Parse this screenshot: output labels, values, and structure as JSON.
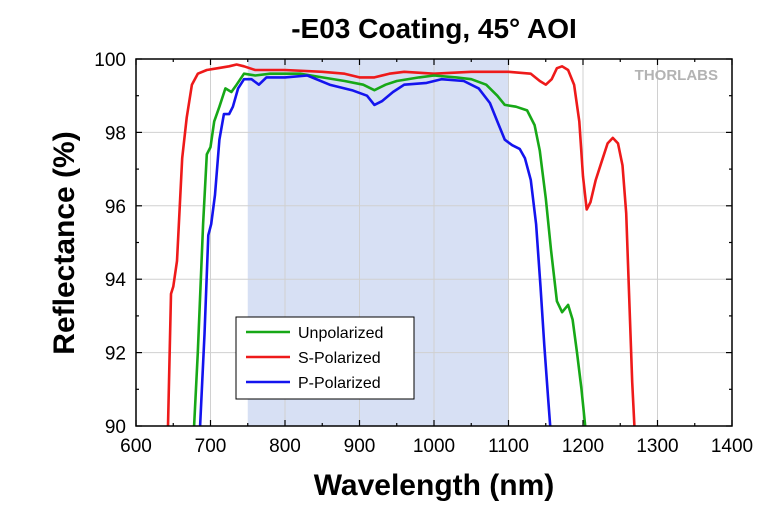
{
  "chart_data": {
    "type": "line",
    "title": "-E03 Coating, 45° AOI",
    "xlabel": "Wavelength (nm)",
    "ylabel": "Reflectance (%)",
    "xlim": [
      600,
      1400
    ],
    "ylim": [
      90,
      100
    ],
    "x_ticks": [
      600,
      700,
      800,
      900,
      1000,
      1100,
      1200,
      1300,
      1400
    ],
    "y_ticks": [
      90,
      92,
      94,
      96,
      98,
      100
    ],
    "grid": true,
    "legend_position": "bottom-left",
    "shaded_region": {
      "x": [
        750,
        1100
      ],
      "color": "#d7e0f4"
    },
    "watermark": "THORLABS",
    "series": [
      {
        "name": "Unpolarized",
        "color": "#17a817",
        "points": [
          [
            678,
            90
          ],
          [
            683,
            92
          ],
          [
            690,
            95.5
          ],
          [
            695,
            97.4
          ],
          [
            700,
            97.6
          ],
          [
            705,
            98.3
          ],
          [
            712,
            98.7
          ],
          [
            720,
            99.2
          ],
          [
            728,
            99.1
          ],
          [
            735,
            99.3
          ],
          [
            745,
            99.6
          ],
          [
            760,
            99.55
          ],
          [
            780,
            99.6
          ],
          [
            800,
            99.6
          ],
          [
            820,
            99.6
          ],
          [
            850,
            99.5
          ],
          [
            880,
            99.4
          ],
          [
            905,
            99.3
          ],
          [
            920,
            99.15
          ],
          [
            935,
            99.3
          ],
          [
            950,
            99.4
          ],
          [
            980,
            99.5
          ],
          [
            1000,
            99.55
          ],
          [
            1030,
            99.5
          ],
          [
            1050,
            99.45
          ],
          [
            1070,
            99.3
          ],
          [
            1085,
            99.0
          ],
          [
            1095,
            98.75
          ],
          [
            1110,
            98.7
          ],
          [
            1125,
            98.6
          ],
          [
            1135,
            98.2
          ],
          [
            1142,
            97.5
          ],
          [
            1150,
            96.2
          ],
          [
            1157,
            94.8
          ],
          [
            1165,
            93.4
          ],
          [
            1172,
            93.1
          ],
          [
            1180,
            93.3
          ],
          [
            1186,
            92.9
          ],
          [
            1192,
            92.0
          ],
          [
            1198,
            91.0
          ],
          [
            1203,
            90
          ]
        ]
      },
      {
        "name": "S-Polarized",
        "color": "#ee1a1a",
        "points": [
          [
            643,
            90
          ],
          [
            647,
            93.6
          ],
          [
            650,
            93.8
          ],
          [
            655,
            94.5
          ],
          [
            662,
            97.3
          ],
          [
            668,
            98.4
          ],
          [
            675,
            99.3
          ],
          [
            683,
            99.6
          ],
          [
            695,
            99.7
          ],
          [
            710,
            99.75
          ],
          [
            725,
            99.8
          ],
          [
            735,
            99.85
          ],
          [
            745,
            99.8
          ],
          [
            760,
            99.7
          ],
          [
            800,
            99.7
          ],
          [
            850,
            99.65
          ],
          [
            880,
            99.6
          ],
          [
            900,
            99.5
          ],
          [
            920,
            99.5
          ],
          [
            940,
            99.6
          ],
          [
            960,
            99.65
          ],
          [
            1000,
            99.6
          ],
          [
            1050,
            99.65
          ],
          [
            1100,
            99.65
          ],
          [
            1130,
            99.6
          ],
          [
            1142,
            99.4
          ],
          [
            1150,
            99.3
          ],
          [
            1158,
            99.45
          ],
          [
            1165,
            99.75
          ],
          [
            1172,
            99.8
          ],
          [
            1180,
            99.7
          ],
          [
            1188,
            99.3
          ],
          [
            1195,
            98.3
          ],
          [
            1200,
            96.8
          ],
          [
            1205,
            95.9
          ],
          [
            1210,
            96.1
          ],
          [
            1217,
            96.7
          ],
          [
            1225,
            97.2
          ],
          [
            1233,
            97.7
          ],
          [
            1240,
            97.85
          ],
          [
            1247,
            97.7
          ],
          [
            1253,
            97.1
          ],
          [
            1258,
            95.8
          ],
          [
            1262,
            93.5
          ],
          [
            1266,
            91.2
          ],
          [
            1269,
            90
          ]
        ]
      },
      {
        "name": "P-Polarized",
        "color": "#1414ee",
        "points": [
          [
            686,
            90
          ],
          [
            692,
            92.5
          ],
          [
            697,
            95.2
          ],
          [
            701,
            95.5
          ],
          [
            706,
            96.3
          ],
          [
            712,
            97.8
          ],
          [
            718,
            98.5
          ],
          [
            725,
            98.5
          ],
          [
            730,
            98.7
          ],
          [
            737,
            99.2
          ],
          [
            745,
            99.45
          ],
          [
            755,
            99.45
          ],
          [
            765,
            99.3
          ],
          [
            775,
            99.5
          ],
          [
            800,
            99.5
          ],
          [
            830,
            99.55
          ],
          [
            860,
            99.3
          ],
          [
            890,
            99.15
          ],
          [
            910,
            99.0
          ],
          [
            920,
            98.75
          ],
          [
            930,
            98.85
          ],
          [
            945,
            99.1
          ],
          [
            960,
            99.3
          ],
          [
            990,
            99.35
          ],
          [
            1010,
            99.45
          ],
          [
            1040,
            99.4
          ],
          [
            1060,
            99.2
          ],
          [
            1075,
            98.8
          ],
          [
            1085,
            98.3
          ],
          [
            1095,
            97.8
          ],
          [
            1105,
            97.65
          ],
          [
            1115,
            97.55
          ],
          [
            1122,
            97.3
          ],
          [
            1130,
            96.7
          ],
          [
            1137,
            95.5
          ],
          [
            1143,
            93.8
          ],
          [
            1148,
            92.2
          ],
          [
            1153,
            90.8
          ],
          [
            1156,
            90
          ]
        ]
      }
    ]
  }
}
